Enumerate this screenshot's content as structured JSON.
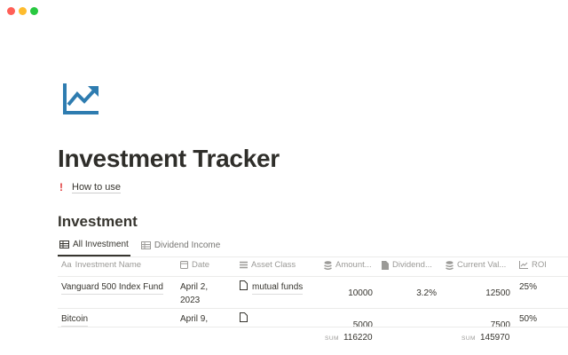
{
  "window": {
    "controls": [
      "close",
      "minimize",
      "maximize"
    ],
    "colors": {
      "close": "#ff5f57",
      "minimize": "#febc2e",
      "maximize": "#28c840"
    }
  },
  "page": {
    "icon": "chart-trending-up-icon",
    "icon_color": "#2e7cb0",
    "title": "Investment Tracker",
    "callout_icon": "exclamation-icon",
    "callout_link": "How to use"
  },
  "database": {
    "title": "Investment",
    "tabs": [
      {
        "label": "All Investment",
        "active": true
      },
      {
        "label": "Dividend Income",
        "active": false
      }
    ],
    "columns": [
      {
        "label": "Investment Name",
        "icon": "text-icon",
        "icon_text": "Aa"
      },
      {
        "label": "Date",
        "icon": "calendar-icon"
      },
      {
        "label": "Asset Class",
        "icon": "list-icon"
      },
      {
        "label": "Amount...",
        "icon": "database-icon"
      },
      {
        "label": "Dividend...",
        "icon": "file-icon"
      },
      {
        "label": "Current Val...",
        "icon": "database-icon"
      },
      {
        "label": "ROI",
        "icon": "chart-icon"
      }
    ],
    "rows": [
      {
        "name": "Vanguard 500 Index Fund",
        "date": "April 2, 2023",
        "date_line1": "April 2,",
        "date_line2": "2023",
        "asset_class": "mutual funds",
        "amount": "10000",
        "dividend": "3.2%",
        "current_value": "12500",
        "roi": "25%"
      },
      {
        "name": "Bitcoin",
        "date_line1": "April 9,",
        "asset_class": "",
        "amount": "5000",
        "dividend": "",
        "current_value": "7500",
        "roi": "50%"
      }
    ],
    "sums": {
      "label": "SUM",
      "amount": "116220",
      "current_value": "145970"
    }
  }
}
